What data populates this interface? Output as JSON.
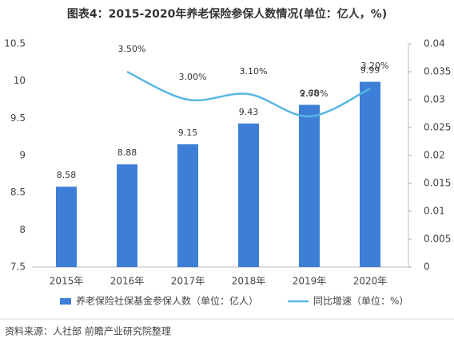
{
  "chart_data": {
    "type": "bar-line",
    "title": "图表4：2015-2020年养老保险参保人数情况(单位：亿人，%)",
    "categories": [
      "2015年",
      "2016年",
      "2017年",
      "2018年",
      "2019年",
      "2020年"
    ],
    "series": [
      {
        "name": "养老保险社保基金参保人数（单位：亿人）",
        "type": "bar",
        "color": "#3d7fd6",
        "values": [
          8.58,
          8.88,
          9.15,
          9.43,
          9.68,
          9.99
        ]
      },
      {
        "name": "同比增速（单位：%）",
        "type": "line",
        "axis": "y2",
        "color": "#57b6e3",
        "values": [
          null,
          0.035,
          0.03,
          0.031,
          0.027,
          0.032
        ],
        "value_labels": [
          null,
          "3.50%",
          "3.00%",
          "3.10%",
          "2.70%",
          "3.20%"
        ]
      }
    ],
    "ylim": [
      7.5,
      10.5
    ],
    "yticks": [
      7.5,
      8,
      8.5,
      9,
      9.5,
      10,
      10.5
    ],
    "y2lim": [
      0,
      0.04
    ],
    "y2ticks": [
      0,
      0.005,
      0.01,
      0.015,
      0.02,
      0.025,
      0.03,
      0.035,
      0.04
    ],
    "source": "资料来源：人社部 前瞻产业研究院整理"
  }
}
